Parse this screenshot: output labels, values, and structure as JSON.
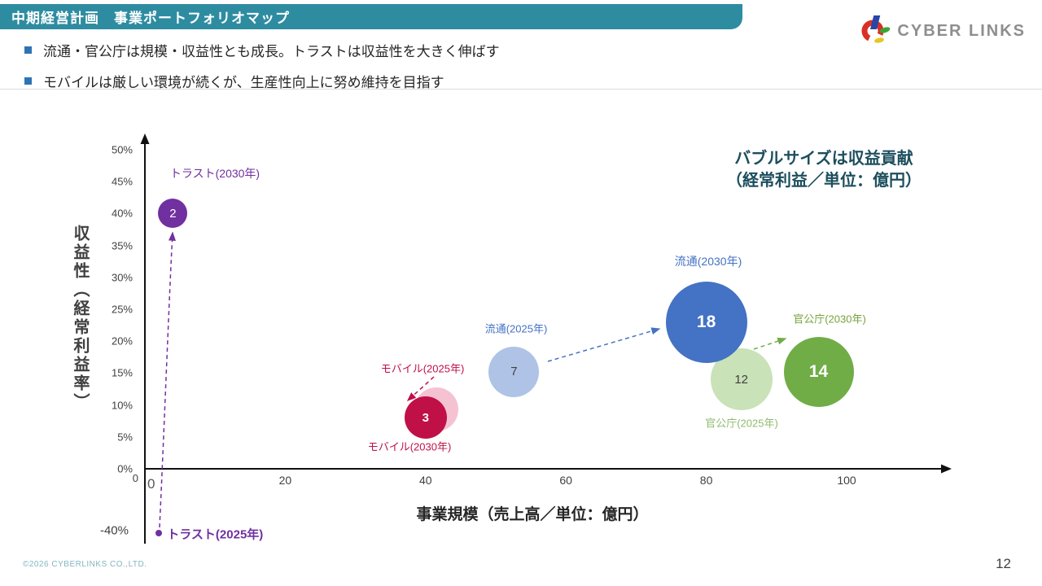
{
  "header": {
    "title": "中期経営計画　事業ポートフォリオマップ",
    "bullets": [
      "流通・官公庁は規模・収益性とも成長。トラストは収益性を大きく伸ばす",
      "モバイルは厳しい環境が続くが、生産性向上に努め維持を目指す"
    ]
  },
  "logo": {
    "text": "CYBER LINKS"
  },
  "footer": {
    "copyright": "©2026 CYBERLINKS CO.,LTD.",
    "page": "12"
  },
  "chart_data": {
    "type": "scatter",
    "subtype": "bubble",
    "note_line1": "バブルサイズは収益貢献",
    "note_line2": "（経常利益／単位：億円）",
    "xlabel": "事業規模（売上高／単位：億円）",
    "ylabel": "収益性（経常利益率）",
    "xlim": [
      0,
      110
    ],
    "ylim_pct": [
      -40,
      50
    ],
    "x_ticks": [
      "20",
      "40",
      "60",
      "80",
      "100"
    ],
    "y_ticks": [
      "50%",
      "45%",
      "40%",
      "35%",
      "30%",
      "25%",
      "20%",
      "15%",
      "10%",
      "5%",
      "0%"
    ],
    "y_extra_tick": "-40%",
    "origin_labels": [
      "0",
      "0"
    ],
    "grid": false,
    "bubbles": [
      {
        "id": "trust-2030",
        "label": "トラスト(2030年)",
        "x": 4,
        "y_pct": 40,
        "value": "2",
        "fill": "#7030A0",
        "num_color": "#FFFFFF",
        "label_color": "#7030A0"
      },
      {
        "id": "mobile-2025",
        "label": "モバイル(2025年)",
        "x": 41.5,
        "y_pct": 9.3,
        "value": "",
        "fill": "#F5C2D1",
        "num_color": "#FFFFFF",
        "label_color": "#C01048"
      },
      {
        "id": "mobile-2030",
        "label": "モバイル(2030年)",
        "x": 40,
        "y_pct": 8,
        "value": "3",
        "fill": "#C01048",
        "num_color": "#FFFFFF",
        "label_color": "#C01048"
      },
      {
        "id": "ryutsu-2025",
        "label": "流通(2025年)",
        "x": 52.6,
        "y_pct": 15.2,
        "value": "7",
        "fill": "#AEC3E5",
        "num_color": "#404040",
        "label_color": "#4472C4"
      },
      {
        "id": "ryutsu-2030",
        "label": "流通(2030年)",
        "x": 80,
        "y_pct": 23,
        "value": "18",
        "fill": "#4472C4",
        "num_color": "#FFFFFF",
        "label_color": "#4472C4"
      },
      {
        "id": "kankocho-2025",
        "label": "官公庁(2025年)",
        "x": 85,
        "y_pct": 14,
        "value": "12",
        "fill": "#C9E2B8",
        "num_color": "#404040",
        "label_color": "#8FBC6B"
      },
      {
        "id": "kankocho-2030",
        "label": "官公庁(2030年)",
        "x": 96,
        "y_pct": 15.2,
        "value": "14",
        "fill": "#70AD47",
        "num_color": "#FFFFFF",
        "label_color": "#76A33C"
      }
    ],
    "trust_2025_point": {
      "label": "トラスト(2025年)",
      "x": 2,
      "y_pct": -40,
      "color": "#7030A0"
    },
    "arrow_colors": {
      "trust": "#7030A0",
      "mobile": "#C01048",
      "ryutsu": "#4472C4",
      "kankocho": "#70AD47"
    }
  }
}
